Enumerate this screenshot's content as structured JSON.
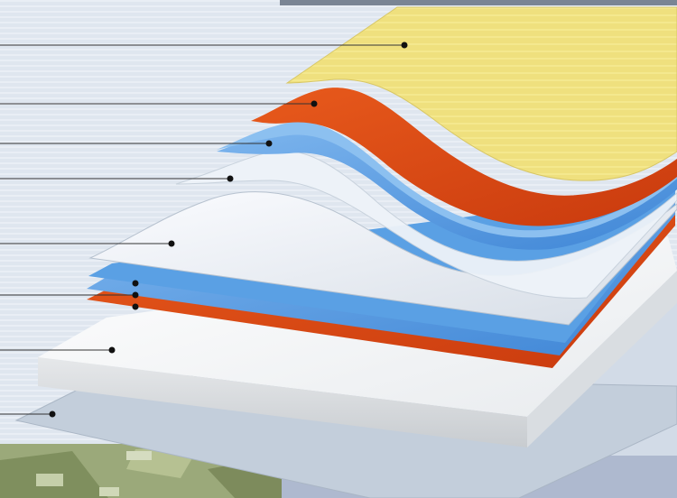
{
  "figure": {
    "description_visible_text": "",
    "layer_count": 8,
    "layers": [
      {
        "id": "top-coating",
        "color": "#ecdc7a"
      },
      {
        "id": "orange-layer-upper",
        "color": "#dd4a16"
      },
      {
        "id": "blue-layer-upper",
        "color": "#5f9fe0"
      },
      {
        "id": "clear-film",
        "color": "#e8eef5"
      },
      {
        "id": "white-film",
        "color": "#f2f4f7"
      },
      {
        "id": "thin-blue-orange-stack",
        "color": "#4a90e0"
      },
      {
        "id": "white-core-board",
        "color": "#f5f5f5"
      },
      {
        "id": "base-sheet",
        "color": "#c9d3df"
      }
    ],
    "leader_count": 10
  }
}
